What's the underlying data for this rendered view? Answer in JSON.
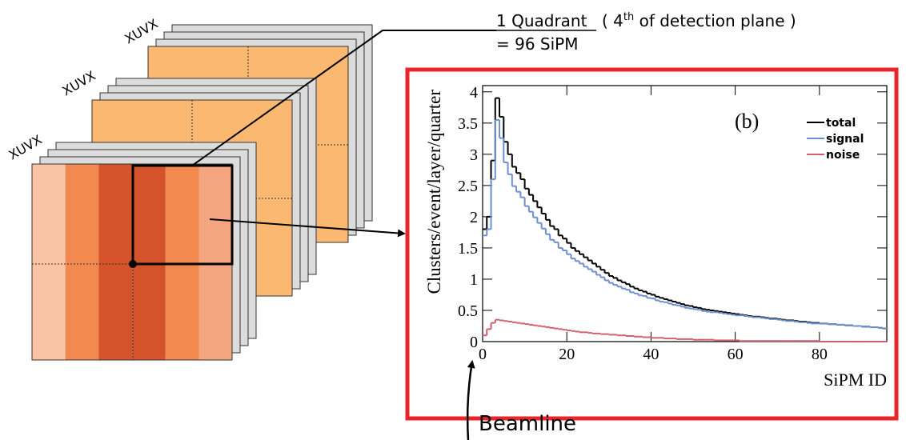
{
  "labels": {
    "layer_labels": [
      "XUVX",
      "XUVX",
      "XUVX"
    ],
    "quadrant_title": "1 Quadrant",
    "quadrant_note_start": "( 4",
    "quadrant_note_sup": "th",
    "quadrant_note_end": " of detection plane )",
    "sipm_count": "= 96 SiPM",
    "beamline": "Beamline"
  },
  "chart_data": {
    "type": "histogram",
    "ylabel": "Clusters/event/layer/quarter",
    "xlabel": "SiPM ID",
    "annotation": "(b)",
    "legend": "upper right",
    "bins": [
      0,
      1,
      2,
      3,
      4,
      5,
      6,
      7,
      8,
      9,
      10,
      11,
      12,
      13,
      14,
      15,
      16,
      17,
      18,
      19,
      20,
      21,
      22,
      23,
      24,
      25,
      26,
      27,
      28,
      29,
      30,
      31,
      32,
      33,
      34,
      35,
      36,
      37,
      38,
      39,
      40,
      41,
      42,
      43,
      44,
      45,
      46,
      47,
      48,
      49,
      50,
      51,
      52,
      53,
      54,
      55,
      56,
      57,
      58,
      59,
      60,
      61,
      62,
      63,
      64,
      65,
      66,
      67,
      68,
      69,
      70,
      71,
      72,
      73,
      74,
      75,
      76,
      77,
      78,
      79,
      80,
      81,
      82,
      83,
      84,
      85,
      86,
      87,
      88,
      89,
      90,
      91,
      92,
      93,
      94,
      95,
      96
    ],
    "series": [
      {
        "name": "total",
        "color": "#000000",
        "values": [
          1.8,
          2.0,
          2.9,
          3.9,
          3.6,
          3.2,
          3.0,
          2.8,
          2.7,
          2.6,
          2.45,
          2.35,
          2.25,
          2.15,
          2.05,
          1.95,
          1.85,
          1.8,
          1.7,
          1.65,
          1.58,
          1.5,
          1.45,
          1.4,
          1.35,
          1.3,
          1.25,
          1.2,
          1.15,
          1.1,
          1.05,
          1.02,
          0.98,
          0.95,
          0.92,
          0.88,
          0.85,
          0.82,
          0.8,
          0.77,
          0.75,
          0.72,
          0.7,
          0.68,
          0.66,
          0.64,
          0.62,
          0.6,
          0.58,
          0.57,
          0.55,
          0.54,
          0.52,
          0.51,
          0.5,
          0.49,
          0.48,
          0.47,
          0.46,
          0.45,
          0.44,
          0.43,
          0.42,
          0.41,
          0.4,
          0.4,
          0.39,
          0.38,
          0.37,
          0.37,
          0.36,
          0.35,
          0.34,
          0.34,
          0.33,
          0.32,
          0.32,
          0.31,
          0.3,
          0.3,
          0.29,
          0.29,
          0.28,
          0.28,
          0.27,
          0.27,
          0.26,
          0.26,
          0.25,
          0.25,
          0.24,
          0.24,
          0.23,
          0.23,
          0.22,
          0.21
        ]
      },
      {
        "name": "signal",
        "color": "#6e8fd0",
        "values": [
          1.7,
          1.8,
          2.6,
          3.55,
          3.26,
          2.87,
          2.68,
          2.49,
          2.4,
          2.31,
          2.17,
          2.08,
          1.99,
          1.9,
          1.81,
          1.72,
          1.63,
          1.59,
          1.5,
          1.46,
          1.4,
          1.33,
          1.29,
          1.25,
          1.2,
          1.16,
          1.12,
          1.07,
          1.03,
          0.98,
          0.94,
          0.91,
          0.88,
          0.85,
          0.83,
          0.79,
          0.77,
          0.74,
          0.73,
          0.7,
          0.69,
          0.66,
          0.64,
          0.63,
          0.61,
          0.59,
          0.58,
          0.56,
          0.54,
          0.53,
          0.52,
          0.51,
          0.49,
          0.48,
          0.47,
          0.47,
          0.46,
          0.45,
          0.44,
          0.43,
          0.42,
          0.42,
          0.41,
          0.4,
          0.39,
          0.39,
          0.38,
          0.37,
          0.36,
          0.36,
          0.35,
          0.34,
          0.33,
          0.33,
          0.32,
          0.31,
          0.31,
          0.3,
          0.29,
          0.29,
          0.29,
          0.29,
          0.28,
          0.28,
          0.27,
          0.27,
          0.26,
          0.26,
          0.25,
          0.25,
          0.24,
          0.24,
          0.23,
          0.23,
          0.22,
          0.21
        ]
      },
      {
        "name": "noise",
        "color": "#d06070",
        "values": [
          0.1,
          0.2,
          0.3,
          0.35,
          0.34,
          0.33,
          0.32,
          0.31,
          0.3,
          0.29,
          0.28,
          0.27,
          0.26,
          0.25,
          0.24,
          0.23,
          0.22,
          0.21,
          0.2,
          0.19,
          0.18,
          0.17,
          0.16,
          0.15,
          0.15,
          0.14,
          0.13,
          0.13,
          0.12,
          0.12,
          0.11,
          0.11,
          0.1,
          0.1,
          0.09,
          0.09,
          0.08,
          0.08,
          0.07,
          0.07,
          0.06,
          0.06,
          0.06,
          0.05,
          0.05,
          0.05,
          0.04,
          0.04,
          0.04,
          0.04,
          0.03,
          0.03,
          0.03,
          0.03,
          0.03,
          0.02,
          0.02,
          0.02,
          0.02,
          0.02,
          0.02,
          0.01,
          0.01,
          0.01,
          0.01,
          0.01,
          0.01,
          0.01,
          0.01,
          0.01,
          0.01,
          0.01,
          0.01,
          0.01,
          0.01,
          0.01,
          0.01,
          0.01,
          0.01,
          0.01,
          0,
          0,
          0,
          0,
          0,
          0,
          0,
          0,
          0,
          0,
          0,
          0,
          0,
          0,
          0,
          0
        ]
      }
    ],
    "xlim": [
      0,
      96
    ],
    "xticks": [
      0,
      20,
      40,
      60,
      80
    ],
    "ylim": [
      0,
      4.1
    ],
    "yticks": [
      0,
      0.5,
      1,
      1.5,
      2,
      2.5,
      3,
      3.5,
      4
    ]
  }
}
